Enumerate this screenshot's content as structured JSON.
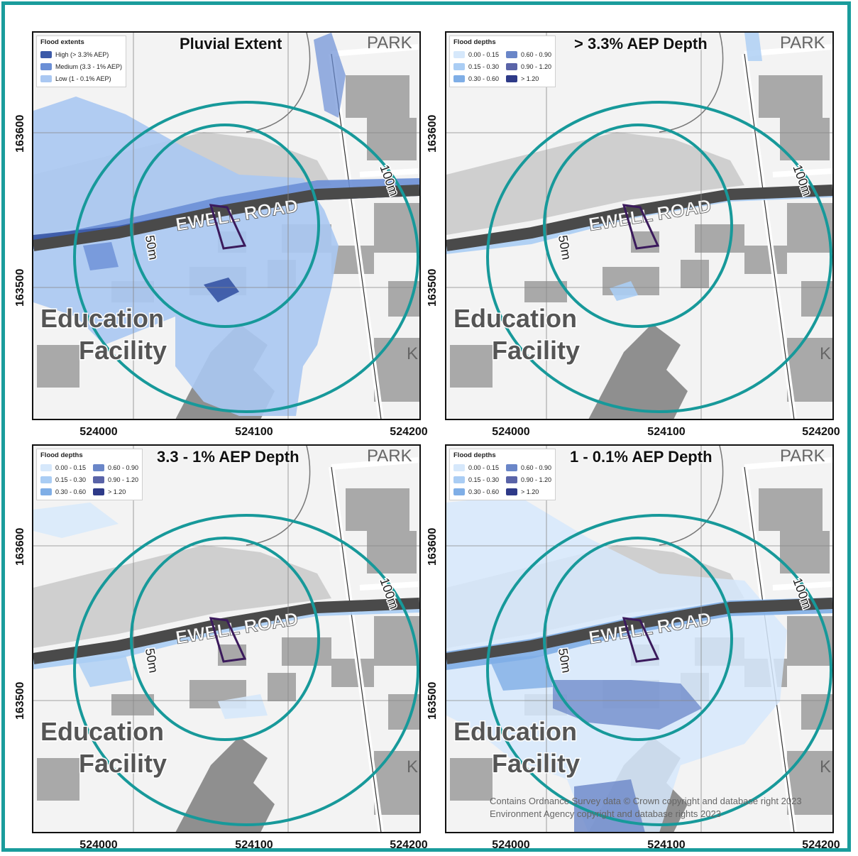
{
  "map": {
    "panels": [
      {
        "title": "Pluvial Extent",
        "legend": {
          "title": "Flood extents",
          "items": [
            {
              "label": "High (> 3.3% AEP)",
              "color": "#3c5aa8"
            },
            {
              "label": "Medium (3.3 - 1% AEP)",
              "color": "#6b8fd6"
            },
            {
              "label": "Low (1 - 0.1% AEP)",
              "color": "#aac8f2"
            }
          ]
        }
      },
      {
        "title": "> 3.3% AEP Depth",
        "legend": {
          "title": "Flood depths",
          "items": [
            {
              "label": "0.00 - 0.15",
              "color": "#d6e8fb"
            },
            {
              "label": "0.60 - 0.90",
              "color": "#6a86c8"
            },
            {
              "label": "0.15 - 0.30",
              "color": "#aacdf4"
            },
            {
              "label": "0.90 - 1.20",
              "color": "#5a64a8"
            },
            {
              "label": "0.30 - 0.60",
              "color": "#7faee6"
            },
            {
              "label": "> 1.20",
              "color": "#2e3a88"
            }
          ]
        }
      },
      {
        "title": "3.3 - 1% AEP Depth",
        "legend": {
          "title": "Flood depths",
          "items": [
            {
              "label": "0.00 - 0.15",
              "color": "#d6e8fb"
            },
            {
              "label": "0.60 - 0.90",
              "color": "#6a86c8"
            },
            {
              "label": "0.15 - 0.30",
              "color": "#aacdf4"
            },
            {
              "label": "0.90 - 1.20",
              "color": "#5a64a8"
            },
            {
              "label": "0.30 - 0.60",
              "color": "#7faee6"
            },
            {
              "label": "> 1.20",
              "color": "#2e3a88"
            }
          ]
        }
      },
      {
        "title": "1 - 0.1% AEP Depth",
        "legend": {
          "title": "Flood depths",
          "items": [
            {
              "label": "0.00 - 0.15",
              "color": "#d6e8fb"
            },
            {
              "label": "0.60 - 0.90",
              "color": "#6a86c8"
            },
            {
              "label": "0.15 - 0.30",
              "color": "#aacdf4"
            },
            {
              "label": "0.90 - 1.20",
              "color": "#5a64a8"
            },
            {
              "label": "0.30 - 0.60",
              "color": "#7faee6"
            },
            {
              "label": "> 1.20",
              "color": "#2e3a88"
            }
          ]
        }
      }
    ],
    "x_ticks": [
      "524000",
      "524100",
      "524200"
    ],
    "y_ticks": [
      "163600",
      "163500"
    ],
    "labels": {
      "education": "Education",
      "facility": "Facility",
      "road": "EWELL ROAD",
      "park": "PARK",
      "k": "K",
      "buffer_inner": "50m",
      "buffer_outer": "100m"
    },
    "credit": {
      "line1": "Contains Ordnance Survey data © Crown copyright and database right 2023",
      "line2": "Environment Agency copyright and database rights 2023"
    },
    "colors": {
      "frame": "#1a9c9c",
      "buffer": "#17999a",
      "site": "#3b1a5c",
      "road": "#4a4a4a",
      "building": "#a9a9a9"
    }
  }
}
